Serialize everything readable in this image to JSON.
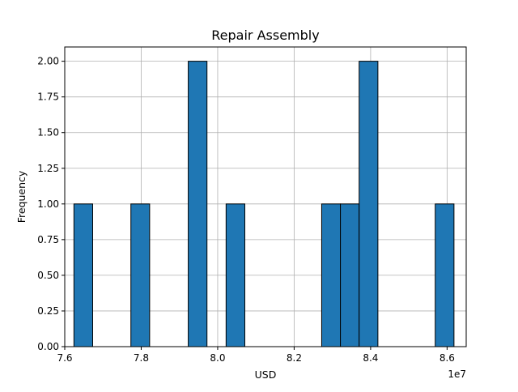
{
  "chart_data": {
    "type": "bar",
    "title": "Repair Assembly",
    "xlabel": "USD",
    "ylabel": "Frequency",
    "x_offset_label": "1e7",
    "x_scale": 10000000,
    "xlim": [
      76000000,
      86500000
    ],
    "ylim": [
      0,
      2.1
    ],
    "grid": true,
    "bar_color": "#1f77b4",
    "edge_color": "#000000",
    "grid_color": "#b0b0b0",
    "x_ticks": [
      {
        "value": 76000000,
        "label": "7.6"
      },
      {
        "value": 78000000,
        "label": "7.8"
      },
      {
        "value": 80000000,
        "label": "8.0"
      },
      {
        "value": 82000000,
        "label": "8.2"
      },
      {
        "value": 84000000,
        "label": "8.4"
      },
      {
        "value": 86000000,
        "label": "8.6"
      }
    ],
    "y_ticks": [
      {
        "value": 0,
        "label": "0.00"
      },
      {
        "value": 0.25,
        "label": "0.25"
      },
      {
        "value": 0.5,
        "label": "0.50"
      },
      {
        "value": 0.75,
        "label": "0.75"
      },
      {
        "value": 1.0,
        "label": "1.00"
      },
      {
        "value": 1.25,
        "label": "1.25"
      },
      {
        "value": 1.5,
        "label": "1.50"
      },
      {
        "value": 1.75,
        "label": "1.75"
      },
      {
        "value": 2.0,
        "label": "2.00"
      }
    ],
    "bins": [
      {
        "x0": 76240000,
        "x1": 76730000,
        "count": 1
      },
      {
        "x0": 77730000,
        "x1": 78220000,
        "count": 1
      },
      {
        "x0": 79230000,
        "x1": 79720000,
        "count": 2
      },
      {
        "x0": 80220000,
        "x1": 80710000,
        "count": 1
      },
      {
        "x0": 82720000,
        "x1": 83210000,
        "count": 1
      },
      {
        "x0": 83210000,
        "x1": 83700000,
        "count": 1
      },
      {
        "x0": 83700000,
        "x1": 84190000,
        "count": 2
      },
      {
        "x0": 85690000,
        "x1": 86180000,
        "count": 1
      }
    ]
  }
}
